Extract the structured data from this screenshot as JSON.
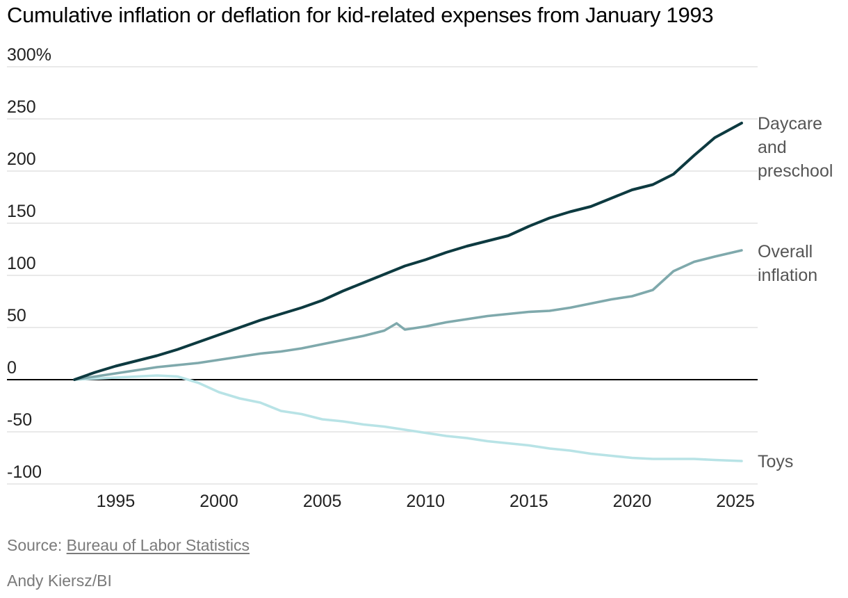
{
  "chart_data": {
    "type": "line",
    "title": "Cumulative inflation or deflation for kid-related expenses from January 1993",
    "xlabel": "",
    "ylabel": "",
    "xlim": [
      1993,
      2025.5
    ],
    "ylim": [
      -100,
      300
    ],
    "y_ticks": [
      {
        "value": 300,
        "label": "300%"
      },
      {
        "value": 250,
        "label": "250"
      },
      {
        "value": 200,
        "label": "200"
      },
      {
        "value": 150,
        "label": "150"
      },
      {
        "value": 100,
        "label": "100"
      },
      {
        "value": 50,
        "label": "50"
      },
      {
        "value": 0,
        "label": "0"
      },
      {
        "value": -50,
        "label": "-50"
      },
      {
        "value": -100,
        "label": "-100"
      }
    ],
    "x_ticks": [
      {
        "value": 1995,
        "label": "1995"
      },
      {
        "value": 2000,
        "label": "2000"
      },
      {
        "value": 2005,
        "label": "2005"
      },
      {
        "value": 2010,
        "label": "2010"
      },
      {
        "value": 2015,
        "label": "2015"
      },
      {
        "value": 2020,
        "label": "2020"
      },
      {
        "value": 2025,
        "label": "2025"
      }
    ],
    "series": [
      {
        "name": "Daycare and preschool",
        "label_lines": [
          "Daycare",
          "and",
          "preschool"
        ],
        "color": "#0d3a40",
        "x": [
          1993,
          1994,
          1995,
          1996,
          1997,
          1998,
          1999,
          2000,
          2001,
          2002,
          2003,
          2004,
          2005,
          2006,
          2007,
          2008,
          2009,
          2010,
          2011,
          2012,
          2013,
          2014,
          2015,
          2016,
          2017,
          2018,
          2019,
          2020,
          2021,
          2022,
          2023,
          2024,
          2025.3
        ],
        "values": [
          0,
          7,
          13,
          18,
          23,
          29,
          36,
          43,
          50,
          57,
          63,
          69,
          76,
          85,
          93,
          101,
          109,
          115,
          122,
          128,
          133,
          138,
          147,
          155,
          161,
          166,
          174,
          182,
          187,
          197,
          215,
          232,
          246
        ]
      },
      {
        "name": "Overall inflation",
        "label_lines": [
          "Overall",
          "inflation"
        ],
        "color": "#7fa9ac",
        "x": [
          1993,
          1994,
          1995,
          1996,
          1997,
          1998,
          1999,
          2000,
          2001,
          2002,
          2003,
          2004,
          2005,
          2006,
          2007,
          2008,
          2008.6,
          2009,
          2010,
          2011,
          2012,
          2013,
          2014,
          2015,
          2016,
          2017,
          2018,
          2019,
          2020,
          2021,
          2022,
          2023,
          2024,
          2025.3
        ],
        "values": [
          0,
          3,
          6,
          9,
          12,
          14,
          16,
          19,
          22,
          25,
          27,
          30,
          34,
          38,
          42,
          47,
          54,
          48,
          51,
          55,
          58,
          61,
          63,
          65,
          66,
          69,
          73,
          77,
          80,
          86,
          104,
          113,
          118,
          124
        ]
      },
      {
        "name": "Toys",
        "label_lines": [
          "Toys"
        ],
        "color": "#b8e3e6",
        "x": [
          1993,
          1994,
          1995,
          1996,
          1997,
          1998,
          1999,
          2000,
          2001,
          2002,
          2003,
          2004,
          2005,
          2006,
          2007,
          2008,
          2009,
          2010,
          2011,
          2012,
          2013,
          2014,
          2015,
          2016,
          2017,
          2018,
          2019,
          2020,
          2021,
          2022,
          2023,
          2024,
          2025.3
        ],
        "values": [
          0,
          1,
          2,
          3,
          4,
          3,
          -3,
          -12,
          -18,
          -22,
          -30,
          -33,
          -38,
          -40,
          -43,
          -45,
          -48,
          -51,
          -54,
          -56,
          -59,
          -61,
          -63,
          -66,
          -68,
          -71,
          -73,
          -75,
          -76,
          -76,
          -76,
          -77,
          -78
        ]
      }
    ]
  },
  "footer": {
    "source_prefix": "Source: ",
    "source_link": "Bureau of Labor Statistics",
    "credit": "Andy Kiersz/BI"
  }
}
